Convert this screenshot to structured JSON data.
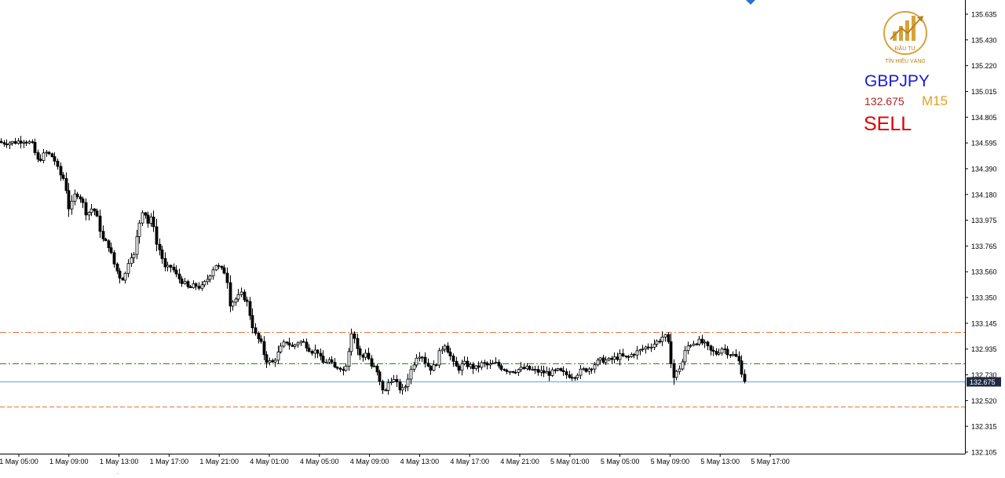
{
  "panel": {
    "logo_top": "ĐẦU TƯ",
    "logo_bottom": "TÍN HIỆU VÀNG",
    "symbol": "GBPJPY",
    "price": "132.675",
    "timeframe": "M15",
    "signal": "SELL"
  },
  "colors": {
    "candle": "#000000",
    "current_line": "#5aa7d6",
    "level_orange": "#e8743b",
    "level_green": "#2e7d32",
    "symbol_text": "#1a1adc",
    "price_text": "#b22222",
    "timeframe_text": "#e6a01e",
    "signal_text": "#e00000",
    "logo_gold": "#d6a23a",
    "price_tag_bg": "#1f2a44"
  },
  "chart_data": {
    "type": "candlestick",
    "symbol": "GBPJPY",
    "timeframe": "M15",
    "y_ticks": [
      "135.635",
      "135.430",
      "135.220",
      "135.015",
      "134.805",
      "134.595",
      "134.390",
      "134.180",
      "133.975",
      "133.765",
      "133.560",
      "133.350",
      "133.145",
      "132.935",
      "132.730",
      "132.520",
      "132.315",
      "132.105"
    ],
    "ylim": [
      132.105,
      135.635
    ],
    "x_ticks": [
      "1 May 05:00",
      "1 May 09:00",
      "1 May 13:00",
      "1 May 17:00",
      "1 May 21:00",
      "4 May 01:00",
      "4 May 05:00",
      "4 May 09:00",
      "4 May 13:00",
      "4 May 17:00",
      "4 May 21:00",
      "5 May 01:00",
      "5 May 05:00",
      "5 May 09:00",
      "5 May 13:00",
      "5 May 17:00"
    ],
    "current_price": 132.675,
    "current_price_label": "132.675",
    "levels": [
      {
        "price": 133.07,
        "style": "dash-dot",
        "color": "orange"
      },
      {
        "price": 132.82,
        "style": "dash-dot",
        "color": "green"
      },
      {
        "price": 132.47,
        "style": "dash",
        "color": "orange"
      }
    ],
    "close_path": [
      [
        0,
        134.6
      ],
      [
        15,
        134.6
      ],
      [
        30,
        134.62
      ],
      [
        40,
        134.59
      ],
      [
        48,
        134.45
      ],
      [
        58,
        134.52
      ],
      [
        68,
        134.48
      ],
      [
        75,
        134.35
      ],
      [
        82,
        134.3
      ],
      [
        88,
        134.05
      ],
      [
        96,
        134.2
      ],
      [
        103,
        134.15
      ],
      [
        110,
        134.02
      ],
      [
        118,
        134.08
      ],
      [
        124,
        133.98
      ],
      [
        130,
        133.82
      ],
      [
        138,
        133.77
      ],
      [
        146,
        133.6
      ],
      [
        152,
        133.52
      ],
      [
        158,
        133.5
      ],
      [
        165,
        133.7
      ],
      [
        170,
        133.68
      ],
      [
        176,
        133.92
      ],
      [
        182,
        134.08
      ],
      [
        188,
        133.95
      ],
      [
        194,
        134.0
      ],
      [
        199,
        133.78
      ],
      [
        204,
        133.72
      ],
      [
        210,
        133.58
      ],
      [
        218,
        133.6
      ],
      [
        225,
        133.52
      ],
      [
        232,
        133.48
      ],
      [
        240,
        133.42
      ],
      [
        248,
        133.45
      ],
      [
        256,
        133.43
      ],
      [
        262,
        133.48
      ],
      [
        268,
        133.55
      ],
      [
        274,
        133.62
      ],
      [
        280,
        133.58
      ],
      [
        288,
        133.55
      ],
      [
        292,
        133.3
      ],
      [
        300,
        133.34
      ],
      [
        308,
        133.38
      ],
      [
        315,
        133.3
      ],
      [
        320,
        133.15
      ],
      [
        325,
        133.05
      ],
      [
        332,
        132.98
      ],
      [
        338,
        132.85
      ],
      [
        346,
        132.82
      ],
      [
        352,
        132.88
      ],
      [
        358,
        132.95
      ],
      [
        364,
        133.0
      ],
      [
        372,
        132.95
      ],
      [
        380,
        133.0
      ],
      [
        388,
        132.98
      ],
      [
        396,
        132.92
      ],
      [
        404,
        132.92
      ],
      [
        410,
        132.82
      ],
      [
        418,
        132.85
      ],
      [
        425,
        132.78
      ],
      [
        432,
        132.8
      ],
      [
        438,
        132.75
      ],
      [
        443,
        132.9
      ],
      [
        448,
        133.1
      ],
      [
        454,
        132.95
      ],
      [
        460,
        132.85
      ],
      [
        466,
        132.92
      ],
      [
        472,
        132.8
      ],
      [
        478,
        132.78
      ],
      [
        484,
        132.65
      ],
      [
        490,
        132.58
      ],
      [
        496,
        132.7
      ],
      [
        502,
        132.68
      ],
      [
        508,
        132.62
      ],
      [
        514,
        132.6
      ],
      [
        520,
        132.72
      ],
      [
        525,
        132.8
      ],
      [
        530,
        132.88
      ],
      [
        536,
        132.9
      ],
      [
        542,
        132.82
      ],
      [
        548,
        132.78
      ],
      [
        554,
        132.8
      ],
      [
        560,
        132.92
      ],
      [
        566,
        132.98
      ],
      [
        572,
        132.9
      ],
      [
        578,
        132.8
      ],
      [
        584,
        132.78
      ],
      [
        590,
        132.82
      ],
      [
        598,
        132.8
      ],
      [
        606,
        132.78
      ],
      [
        614,
        132.82
      ],
      [
        622,
        132.8
      ],
      [
        630,
        132.82
      ],
      [
        640,
        132.78
      ],
      [
        650,
        132.76
      ],
      [
        660,
        132.77
      ],
      [
        670,
        132.78
      ],
      [
        680,
        132.76
      ],
      [
        690,
        132.75
      ],
      [
        700,
        132.74
      ],
      [
        710,
        132.76
      ],
      [
        720,
        132.73
      ],
      [
        730,
        132.72
      ],
      [
        740,
        132.76
      ],
      [
        750,
        132.78
      ],
      [
        758,
        132.82
      ],
      [
        766,
        132.85
      ],
      [
        774,
        132.84
      ],
      [
        782,
        132.86
      ],
      [
        790,
        132.88
      ],
      [
        798,
        132.86
      ],
      [
        806,
        132.9
      ],
      [
        814,
        132.92
      ],
      [
        822,
        132.95
      ],
      [
        830,
        132.97
      ],
      [
        838,
        133.0
      ],
      [
        846,
        133.05
      ],
      [
        852,
        132.95
      ],
      [
        857,
        132.7
      ],
      [
        862,
        132.75
      ],
      [
        868,
        132.82
      ],
      [
        874,
        132.95
      ],
      [
        880,
        132.98
      ],
      [
        888,
        133.0
      ],
      [
        896,
        132.98
      ],
      [
        904,
        132.92
      ],
      [
        912,
        132.9
      ],
      [
        920,
        132.95
      ],
      [
        928,
        132.9
      ],
      [
        936,
        132.88
      ],
      [
        942,
        132.82
      ],
      [
        946,
        132.7
      ],
      [
        950,
        132.675
      ]
    ]
  }
}
